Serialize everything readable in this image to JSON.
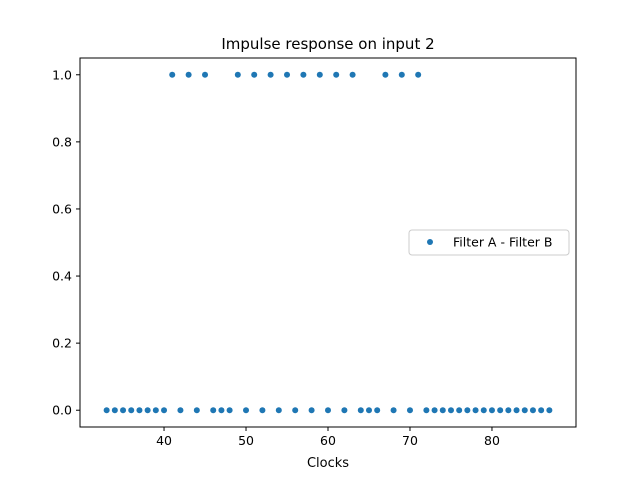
{
  "chart_data": {
    "type": "scatter",
    "title": "Impulse response on input 2",
    "xlabel": "Clocks",
    "ylabel": "",
    "xlim": [
      29.75,
      90.25
    ],
    "ylim": [
      -0.05,
      1.05
    ],
    "xticks": [
      40,
      50,
      60,
      70,
      80
    ],
    "yticks": [
      0.0,
      0.2,
      0.4,
      0.6,
      0.8,
      1.0
    ],
    "xtick_labels": [
      "40",
      "50",
      "60",
      "70",
      "80"
    ],
    "ytick_labels": [
      "0.0",
      "0.2",
      "0.4",
      "0.6",
      "0.8",
      "1.0"
    ],
    "grid": false,
    "legend_position": "center-right",
    "series": [
      {
        "name": "Filter A - Filter B",
        "color": "#1f77b4",
        "x": [
          33,
          34,
          35,
          36,
          37,
          38,
          39,
          40,
          41,
          42,
          43,
          44,
          45,
          46,
          47,
          48,
          49,
          50,
          51,
          52,
          53,
          54,
          55,
          56,
          57,
          58,
          59,
          60,
          61,
          62,
          63,
          64,
          65,
          66,
          67,
          68,
          69,
          70,
          71,
          72,
          73,
          74,
          75,
          76,
          77,
          78,
          79,
          80,
          81,
          82,
          83,
          84,
          85,
          86,
          87
        ],
        "y": [
          0,
          0,
          0,
          0,
          0,
          0,
          0,
          0,
          1,
          0,
          1,
          0,
          1,
          0,
          0,
          0,
          1,
          0,
          1,
          0,
          1,
          0,
          1,
          0,
          1,
          0,
          1,
          0,
          1,
          0,
          1,
          0,
          0,
          0,
          1,
          0,
          1,
          0,
          1,
          0,
          0,
          0,
          0,
          0,
          0,
          0,
          0,
          0,
          0,
          0,
          0,
          0,
          0,
          0,
          0
        ]
      }
    ]
  }
}
